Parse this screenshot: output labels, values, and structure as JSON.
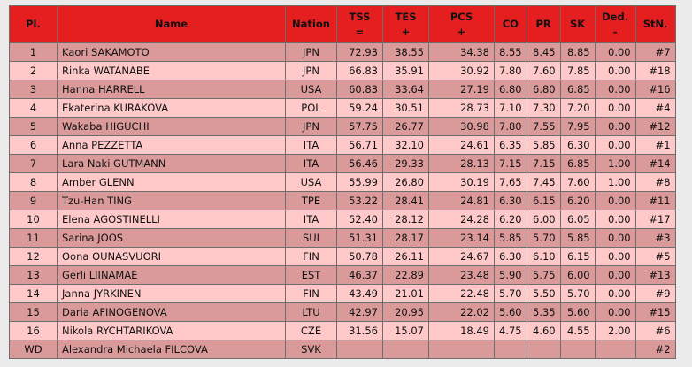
{
  "table": {
    "headers": {
      "pl": "Pl.",
      "name": "Name",
      "nation": "Nation",
      "tss": "TSS",
      "tss_sub": "=",
      "tes": "TES",
      "tes_sub": "+",
      "pcs": "PCS",
      "pcs_sub": "+",
      "co": "CO",
      "pr": "PR",
      "sk": "SK",
      "ded": "Ded.",
      "ded_sub": "-",
      "stn": "StN."
    },
    "rows": [
      {
        "pl": "1",
        "name": "Kaori SAKAMOTO",
        "nation": "JPN",
        "tss": "72.93",
        "tes": "38.55",
        "pcs": "34.38",
        "co": "8.55",
        "pr": "8.45",
        "sk": "8.85",
        "ded": "0.00",
        "stn": "#7"
      },
      {
        "pl": "2",
        "name": "Rinka WATANABE",
        "nation": "JPN",
        "tss": "66.83",
        "tes": "35.91",
        "pcs": "30.92",
        "co": "7.80",
        "pr": "7.60",
        "sk": "7.85",
        "ded": "0.00",
        "stn": "#18"
      },
      {
        "pl": "3",
        "name": "Hanna HARRELL",
        "nation": "USA",
        "tss": "60.83",
        "tes": "33.64",
        "pcs": "27.19",
        "co": "6.80",
        "pr": "6.80",
        "sk": "6.85",
        "ded": "0.00",
        "stn": "#16"
      },
      {
        "pl": "4",
        "name": "Ekaterina KURAKOVA",
        "nation": "POL",
        "tss": "59.24",
        "tes": "30.51",
        "pcs": "28.73",
        "co": "7.10",
        "pr": "7.30",
        "sk": "7.20",
        "ded": "0.00",
        "stn": "#4"
      },
      {
        "pl": "5",
        "name": "Wakaba HIGUCHI",
        "nation": "JPN",
        "tss": "57.75",
        "tes": "26.77",
        "pcs": "30.98",
        "co": "7.80",
        "pr": "7.55",
        "sk": "7.95",
        "ded": "0.00",
        "stn": "#12"
      },
      {
        "pl": "6",
        "name": "Anna PEZZETTA",
        "nation": "ITA",
        "tss": "56.71",
        "tes": "32.10",
        "pcs": "24.61",
        "co": "6.35",
        "pr": "5.85",
        "sk": "6.30",
        "ded": "0.00",
        "stn": "#1"
      },
      {
        "pl": "7",
        "name": "Lara Naki GUTMANN",
        "nation": "ITA",
        "tss": "56.46",
        "tes": "29.33",
        "pcs": "28.13",
        "co": "7.15",
        "pr": "7.15",
        "sk": "6.85",
        "ded": "1.00",
        "stn": "#14"
      },
      {
        "pl": "8",
        "name": "Amber GLENN",
        "nation": "USA",
        "tss": "55.99",
        "tes": "26.80",
        "pcs": "30.19",
        "co": "7.65",
        "pr": "7.45",
        "sk": "7.60",
        "ded": "1.00",
        "stn": "#8"
      },
      {
        "pl": "9",
        "name": "Tzu-Han TING",
        "nation": "TPE",
        "tss": "53.22",
        "tes": "28.41",
        "pcs": "24.81",
        "co": "6.30",
        "pr": "6.15",
        "sk": "6.20",
        "ded": "0.00",
        "stn": "#11"
      },
      {
        "pl": "10",
        "name": "Elena AGOSTINELLI",
        "nation": "ITA",
        "tss": "52.40",
        "tes": "28.12",
        "pcs": "24.28",
        "co": "6.20",
        "pr": "6.00",
        "sk": "6.05",
        "ded": "0.00",
        "stn": "#17"
      },
      {
        "pl": "11",
        "name": "Sarina JOOS",
        "nation": "SUI",
        "tss": "51.31",
        "tes": "28.17",
        "pcs": "23.14",
        "co": "5.85",
        "pr": "5.70",
        "sk": "5.85",
        "ded": "0.00",
        "stn": "#3"
      },
      {
        "pl": "12",
        "name": "Oona OUNASVUORI",
        "nation": "FIN",
        "tss": "50.78",
        "tes": "26.11",
        "pcs": "24.67",
        "co": "6.30",
        "pr": "6.10",
        "sk": "6.15",
        "ded": "0.00",
        "stn": "#5"
      },
      {
        "pl": "13",
        "name": "Gerli LIINAMAE",
        "nation": "EST",
        "tss": "46.37",
        "tes": "22.89",
        "pcs": "23.48",
        "co": "5.90",
        "pr": "5.75",
        "sk": "6.00",
        "ded": "0.00",
        "stn": "#13"
      },
      {
        "pl": "14",
        "name": "Janna JYRKINEN",
        "nation": "FIN",
        "tss": "43.49",
        "tes": "21.01",
        "pcs": "22.48",
        "co": "5.70",
        "pr": "5.50",
        "sk": "5.70",
        "ded": "0.00",
        "stn": "#9"
      },
      {
        "pl": "15",
        "name": "Daria AFINOGENOVA",
        "nation": "LTU",
        "tss": "42.97",
        "tes": "20.95",
        "pcs": "22.02",
        "co": "5.60",
        "pr": "5.35",
        "sk": "5.60",
        "ded": "0.00",
        "stn": "#15"
      },
      {
        "pl": "16",
        "name": "Nikola RYCHTARIKOVA",
        "nation": "CZE",
        "tss": "31.56",
        "tes": "15.07",
        "pcs": "18.49",
        "co": "4.75",
        "pr": "4.60",
        "sk": "4.55",
        "ded": "2.00",
        "stn": "#6"
      },
      {
        "pl": "WD",
        "name": "Alexandra Michaela FILCOVA",
        "nation": "SVK",
        "tss": "",
        "tes": "",
        "pcs": "",
        "co": "",
        "pr": "",
        "sk": "",
        "ded": "",
        "stn": "#2"
      }
    ]
  },
  "colors": {
    "header_bg": "#e51f1f",
    "row_odd": "#db9a9a",
    "row_even": "#ffc9c9",
    "page_bg": "#ebebeb"
  }
}
